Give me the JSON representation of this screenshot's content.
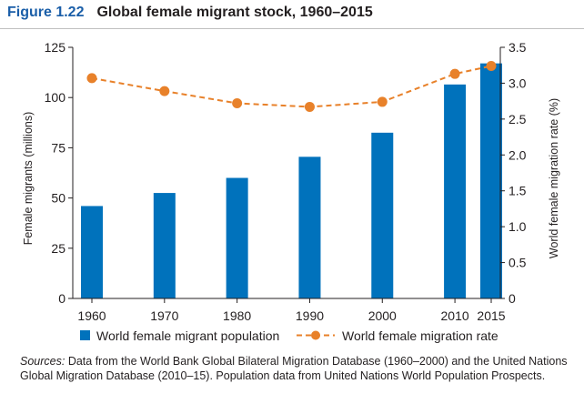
{
  "figure": {
    "label": "Figure 1.22",
    "title": "Global female migrant stock, 1960–2015"
  },
  "chart_data": {
    "type": "bar",
    "categories": [
      "1960",
      "1970",
      "1980",
      "1990",
      "2000",
      "2010",
      "2015"
    ],
    "x": [
      1960,
      1970,
      1980,
      1990,
      2000,
      2010,
      2015
    ],
    "xlim": [
      1960,
      2015
    ],
    "series": [
      {
        "name": "World female migrant population",
        "type": "bar",
        "axis": "left",
        "color": "#0072bc",
        "values": [
          46,
          52.5,
          60,
          70.5,
          82.5,
          106.5,
          117
        ]
      },
      {
        "name": "World female migration rate",
        "type": "line",
        "axis": "right",
        "color": "#e8812a",
        "style": "dashed",
        "marker": "circle",
        "values": [
          3.07,
          2.89,
          2.72,
          2.67,
          2.74,
          3.13,
          3.24
        ]
      }
    ],
    "ylabel": "Female migrants (millions)",
    "ylim": [
      0,
      125
    ],
    "yticks": [
      0,
      25,
      50,
      75,
      100,
      125
    ],
    "y2label": "World female migration rate (%)",
    "y2lim": [
      0,
      3.5
    ],
    "y2ticks": [
      "0",
      "0.5",
      "1.0",
      "1.5",
      "2.0",
      "2.5",
      "3.0",
      "3.5"
    ],
    "legend": "bottom",
    "grid": false
  },
  "source": {
    "label": "Sources:",
    "text": "Data from the World Bank Global Bilateral Migration Database (1960–2000) and the United Nations Global Migration Database (2010–15). Population data from United Nations World Population Prospects."
  }
}
